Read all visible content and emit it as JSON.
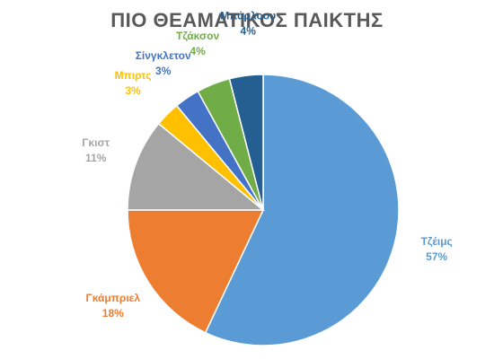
{
  "chart_data": {
    "type": "pie",
    "title": "ΠΙΟ ΘΕΑΜΑΤΙΚΟΣ  ΠΑΙΚΤΗΣ",
    "start_angle_deg": 0,
    "direction": "clockwise",
    "slices": [
      {
        "name": "Τζέιμς",
        "value": 57,
        "label": "57%",
        "color": "#5B9BD5"
      },
      {
        "name": "Γκάμπριελ",
        "value": 18,
        "label": "18%",
        "color": "#ED7D31"
      },
      {
        "name": "Γκιστ",
        "value": 11,
        "label": "11%",
        "color": "#A5A5A5"
      },
      {
        "name": "Μπιρτς",
        "value": 3,
        "label": "3%",
        "color": "#FFC000"
      },
      {
        "name": "Σίνγκλετον",
        "value": 3,
        "label": "3%",
        "color": "#4472C4"
      },
      {
        "name": "Τζάκσον",
        "value": 4,
        "label": "4%",
        "color": "#70AD47"
      },
      {
        "name": "Μπάρλοου",
        "value": 4,
        "label": "4%",
        "color": "#255E91"
      }
    ]
  }
}
